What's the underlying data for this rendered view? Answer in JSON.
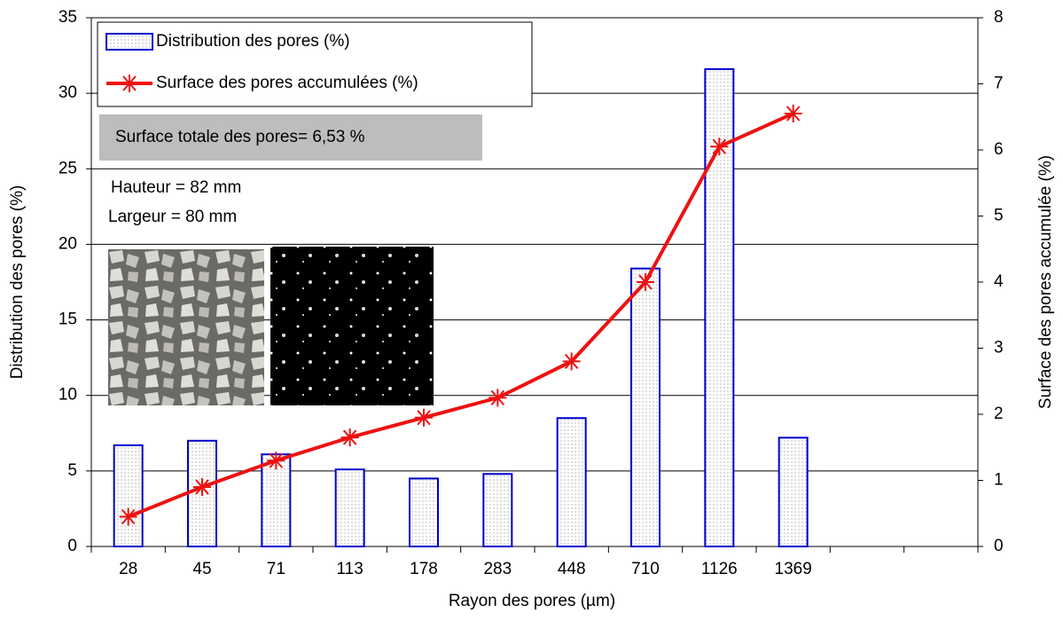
{
  "chart_data": {
    "type": "bar-line",
    "x_label": "Rayon des pores (µm)",
    "y_label": "Distribution  des pores (%)",
    "y2_label": "Surface des pores accumulée (%)",
    "categories": [
      "28",
      "45",
      "71",
      "113",
      "178",
      "283",
      "448",
      "710",
      "1126",
      "1369",
      null,
      null
    ],
    "series": [
      {
        "name": "Distribution des pores (%)",
        "type": "bar",
        "color": "#0000cc",
        "values": [
          6.7,
          7.0,
          6.1,
          5.1,
          4.5,
          4.8,
          8.5,
          18.4,
          31.6,
          7.2,
          null,
          null
        ]
      },
      {
        "name": "Surface des pores accumulées (%)",
        "type": "line",
        "axis": "y2",
        "color": "#ee1111",
        "values": [
          0.45,
          0.9,
          1.3,
          1.65,
          1.95,
          2.25,
          2.8,
          4.0,
          6.05,
          6.55,
          null,
          null
        ]
      }
    ],
    "ylim": [
      0,
      35
    ],
    "yticks": [
      0,
      5,
      10,
      15,
      20,
      25,
      30,
      35
    ],
    "y2lim": [
      0,
      8
    ],
    "y2ticks": [
      0,
      1,
      2,
      3,
      4,
      5,
      6,
      7,
      8
    ],
    "grid": true,
    "legend": "top-left",
    "annotations": [
      "Surface totale des pores= 6,53 %",
      "Hauteur = 82 mm",
      "Largeur = 80 mm"
    ]
  }
}
